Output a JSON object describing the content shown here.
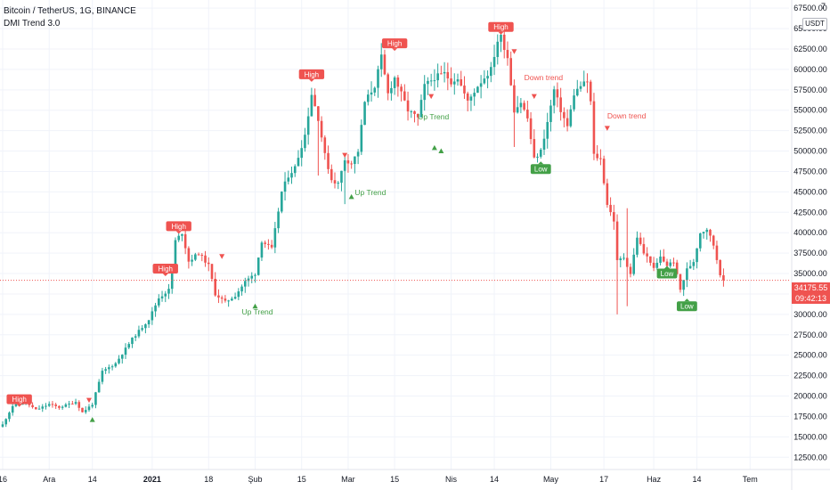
{
  "header": {
    "symbol": "Bitcoin / TetherUS, 1G, BINANCE",
    "indicator": "DMI Trend 3.0",
    "currency_button": "USDT",
    "corner_value": "7"
  },
  "price_tag": {
    "price": "34175.55",
    "countdown": "09:42:13"
  },
  "colors": {
    "up": "#26a69a",
    "down": "#ef5350",
    "signal_up": "#43a047",
    "grid": "#f0f3fa",
    "axis_text": "#131722"
  },
  "chart_data": {
    "type": "candlestick",
    "ylim": [
      11000,
      68500
    ],
    "y_ticks": [
      12500,
      15000,
      17500,
      20000,
      22500,
      25000,
      27500,
      30000,
      32500,
      35000,
      37500,
      40000,
      42500,
      45000,
      47500,
      50000,
      52500,
      55000,
      57500,
      60000,
      62500,
      65000,
      67500
    ],
    "x_ticks": [
      {
        "label": "16",
        "day": 0
      },
      {
        "label": "Ara",
        "day": 14
      },
      {
        "label": "14",
        "day": 27
      },
      {
        "label": "2021",
        "day": 45
      },
      {
        "label": "18",
        "day": 62
      },
      {
        "label": "Şub",
        "day": 76
      },
      {
        "label": "15",
        "day": 90
      },
      {
        "label": "Mar",
        "day": 104
      },
      {
        "label": "15",
        "day": 118
      },
      {
        "label": "Nis",
        "day": 135
      },
      {
        "label": "14",
        "day": 148
      },
      {
        "label": "May",
        "day": 165
      },
      {
        "label": "17",
        "day": 181
      },
      {
        "label": "Haz",
        "day": 196
      },
      {
        "label": "14",
        "day": 209
      },
      {
        "label": "Tem",
        "day": 225
      }
    ],
    "last_price": 34175.55,
    "anchors": [
      [
        0,
        16500
      ],
      [
        3,
        18800
      ],
      [
        7,
        19200
      ],
      [
        10,
        18300
      ],
      [
        14,
        19000
      ],
      [
        17,
        18600
      ],
      [
        22,
        19300
      ],
      [
        24,
        18000
      ],
      [
        27,
        19000
      ],
      [
        30,
        23000
      ],
      [
        34,
        24000
      ],
      [
        39,
        27000
      ],
      [
        44,
        29400
      ],
      [
        47,
        32000
      ],
      [
        50,
        33000
      ],
      [
        52,
        39000
      ],
      [
        54,
        40000
      ],
      [
        56,
        36500
      ],
      [
        59,
        37500
      ],
      [
        62,
        36000
      ],
      [
        64,
        32500
      ],
      [
        67,
        31500
      ],
      [
        70,
        32300
      ],
      [
        73,
        34000
      ],
      [
        76,
        35000
      ],
      [
        78,
        39000
      ],
      [
        81,
        38000
      ],
      [
        84,
        45000
      ],
      [
        86,
        47000
      ],
      [
        88,
        48000
      ],
      [
        91,
        52000
      ],
      [
        93,
        57000
      ],
      [
        95,
        54000
      ],
      [
        97,
        49500
      ],
      [
        99,
        46500
      ],
      [
        101,
        46000
      ],
      [
        103,
        49000
      ],
      [
        105,
        48500
      ],
      [
        107,
        50000
      ],
      [
        109,
        56000
      ],
      [
        112,
        58000
      ],
      [
        114,
        61500
      ],
      [
        116,
        57000
      ],
      [
        118,
        59000
      ],
      [
        120,
        57000
      ],
      [
        122,
        55000
      ],
      [
        125,
        54000
      ],
      [
        127,
        58000
      ],
      [
        130,
        59000
      ],
      [
        133,
        59500
      ],
      [
        135,
        58500
      ],
      [
        137,
        59000
      ],
      [
        140,
        56000
      ],
      [
        143,
        58000
      ],
      [
        147,
        60000
      ],
      [
        149,
        63500
      ],
      [
        150,
        64000
      ],
      [
        152,
        61500
      ],
      [
        154,
        55000
      ],
      [
        156,
        56000
      ],
      [
        158,
        54000
      ],
      [
        160,
        49000
      ],
      [
        162,
        50000
      ],
      [
        164,
        53500
      ],
      [
        166,
        57500
      ],
      [
        168,
        55000
      ],
      [
        170,
        53000
      ],
      [
        172,
        57000
      ],
      [
        174,
        58000
      ],
      [
        176,
        58500
      ],
      [
        177,
        56000
      ],
      [
        178,
        49500
      ],
      [
        180,
        49000
      ],
      [
        182,
        43500
      ],
      [
        184,
        41500
      ],
      [
        185,
        36500
      ],
      [
        187,
        37000
      ],
      [
        189,
        35000
      ],
      [
        191,
        39500
      ],
      [
        193,
        37500
      ],
      [
        195,
        36500
      ],
      [
        196,
        35500
      ],
      [
        198,
        37000
      ],
      [
        200,
        36000
      ],
      [
        202,
        36500
      ],
      [
        204,
        33000
      ],
      [
        206,
        35500
      ],
      [
        208,
        36500
      ],
      [
        210,
        40000
      ],
      [
        212,
        40500
      ],
      [
        214,
        38500
      ],
      [
        216,
        35000
      ],
      [
        217,
        34175.55
      ]
    ],
    "shadow_extremes": [
      {
        "day": 185,
        "low": 30000
      },
      {
        "day": 188,
        "low": 31000
      },
      {
        "day": 154,
        "low": 50500
      },
      {
        "day": 95,
        "low": 47000
      },
      {
        "day": 103,
        "low": 43500
      },
      {
        "day": 188,
        "high": 43000
      }
    ],
    "labels": [
      {
        "kind": "high",
        "text": "High",
        "day": 5,
        "price": 19600
      },
      {
        "kind": "high",
        "text": "High",
        "day": 49,
        "price": 35600
      },
      {
        "kind": "high",
        "text": "High",
        "day": 53,
        "price": 40800
      },
      {
        "kind": "high",
        "text": "High",
        "day": 93,
        "price": 59400
      },
      {
        "kind": "high",
        "text": "High",
        "day": 118,
        "price": 63200
      },
      {
        "kind": "high",
        "text": "High",
        "day": 150,
        "price": 65200
      },
      {
        "kind": "low",
        "text": "Low",
        "day": 162,
        "price": 47800
      },
      {
        "kind": "low",
        "text": "Low",
        "day": 200,
        "price": 35000
      },
      {
        "kind": "low",
        "text": "Low",
        "day": 206,
        "price": 31000
      }
    ],
    "trend_texts": [
      {
        "text": "Up Trend",
        "day": 72,
        "price": 30000,
        "kind": "up"
      },
      {
        "text": "Up Trend",
        "day": 106,
        "price": 44600,
        "kind": "up"
      },
      {
        "text": "Up Trend",
        "day": 125,
        "price": 53900,
        "kind": "up"
      },
      {
        "text": "Down trend",
        "day": 157,
        "price": 58700,
        "kind": "down"
      },
      {
        "text": "Down trend",
        "day": 182,
        "price": 54000,
        "kind": "down"
      }
    ],
    "markers": [
      {
        "dir": "down",
        "day": 26,
        "price": 19500
      },
      {
        "dir": "up",
        "day": 27,
        "price": 17100
      },
      {
        "dir": "down",
        "day": 66,
        "price": 37100
      },
      {
        "dir": "up",
        "day": 76,
        "price": 31000
      },
      {
        "dir": "down",
        "day": 103,
        "price": 49500
      },
      {
        "dir": "up",
        "day": 105,
        "price": 44400
      },
      {
        "dir": "down",
        "day": 129,
        "price": 56700
      },
      {
        "dir": "up",
        "day": 130,
        "price": 50400
      },
      {
        "dir": "up",
        "day": 132,
        "price": 50000
      },
      {
        "dir": "down",
        "day": 154,
        "price": 62200
      },
      {
        "dir": "down",
        "day": 160,
        "price": 56700
      },
      {
        "dir": "down",
        "day": 182,
        "price": 52800
      }
    ]
  }
}
